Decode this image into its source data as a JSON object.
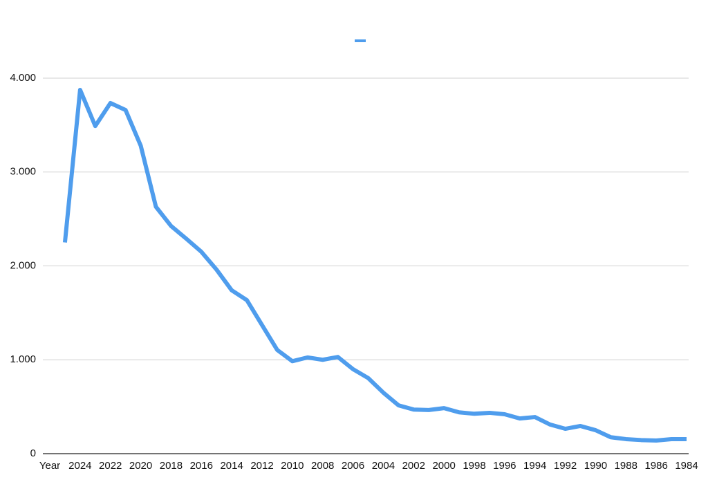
{
  "chart_data": {
    "type": "line",
    "categories": [
      "Year",
      null,
      "2024",
      null,
      "2022",
      null,
      "2020",
      null,
      "2018",
      null,
      "2016",
      null,
      "2014",
      null,
      "2012",
      null,
      "2010",
      null,
      "2008",
      null,
      "2006",
      null,
      "2004",
      null,
      "2002",
      null,
      "2000",
      null,
      "1998",
      null,
      "1996",
      null,
      "1994",
      null,
      "1992",
      null,
      "1990",
      null,
      "1988",
      null,
      "1986",
      null,
      "1984"
    ],
    "series": [
      {
        "color": "#4f9ded",
        "values": [
          null,
          2250,
          3875,
          3490,
          3735,
          3660,
          3280,
          2630,
          2425,
          2290,
          2150,
          1960,
          1740,
          1635,
          1370,
          1105,
          985,
          1025,
          1000,
          1030,
          900,
          805,
          650,
          515,
          470,
          465,
          485,
          440,
          425,
          435,
          420,
          375,
          390,
          310,
          265,
          295,
          250,
          175,
          155,
          145,
          140,
          155,
          155
        ]
      }
    ],
    "ylim": [
      0,
      4000
    ],
    "yticks": [
      0,
      {
        "value": 1000,
        "label": "1.000"
      },
      {
        "value": 2000,
        "label": "2.000"
      },
      {
        "value": 3000,
        "label": "3.000"
      },
      {
        "value": 4000,
        "label": "4.000"
      }
    ],
    "grid": true
  }
}
